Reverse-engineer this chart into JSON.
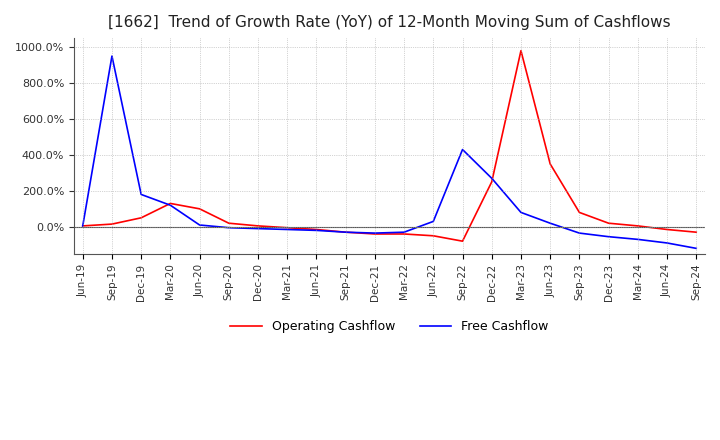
{
  "title": "[1662]  Trend of Growth Rate (YoY) of 12-Month Moving Sum of Cashflows",
  "title_fontsize": 11,
  "ylim": [
    -150,
    1050
  ],
  "ytick_values": [
    0,
    200,
    400,
    600,
    800,
    1000
  ],
  "background_color": "#ffffff",
  "grid_color": "#aaaaaa",
  "operating_color": "#ff0000",
  "free_color": "#0000ff",
  "legend_labels": [
    "Operating Cashflow",
    "Free Cashflow"
  ],
  "x_labels": [
    "Jun-19",
    "Sep-19",
    "Dec-19",
    "Mar-20",
    "Jun-20",
    "Sep-20",
    "Dec-20",
    "Mar-21",
    "Jun-21",
    "Sep-21",
    "Dec-21",
    "Mar-22",
    "Jun-22",
    "Sep-22",
    "Dec-22",
    "Mar-23",
    "Jun-23",
    "Sep-23",
    "Dec-23",
    "Mar-24",
    "Jun-24",
    "Sep-24"
  ],
  "operating_cashflow": [
    5,
    15,
    50,
    130,
    100,
    20,
    5,
    -5,
    -15,
    -30,
    -40,
    -40,
    -50,
    -80,
    250,
    980,
    350,
    80,
    20,
    5,
    -15,
    -30
  ],
  "free_cashflow": [
    5,
    950,
    180,
    120,
    10,
    -5,
    -10,
    -15,
    -20,
    -30,
    -35,
    -30,
    30,
    430,
    270,
    80,
    20,
    -35,
    -55,
    -70,
    -90,
    -120
  ]
}
